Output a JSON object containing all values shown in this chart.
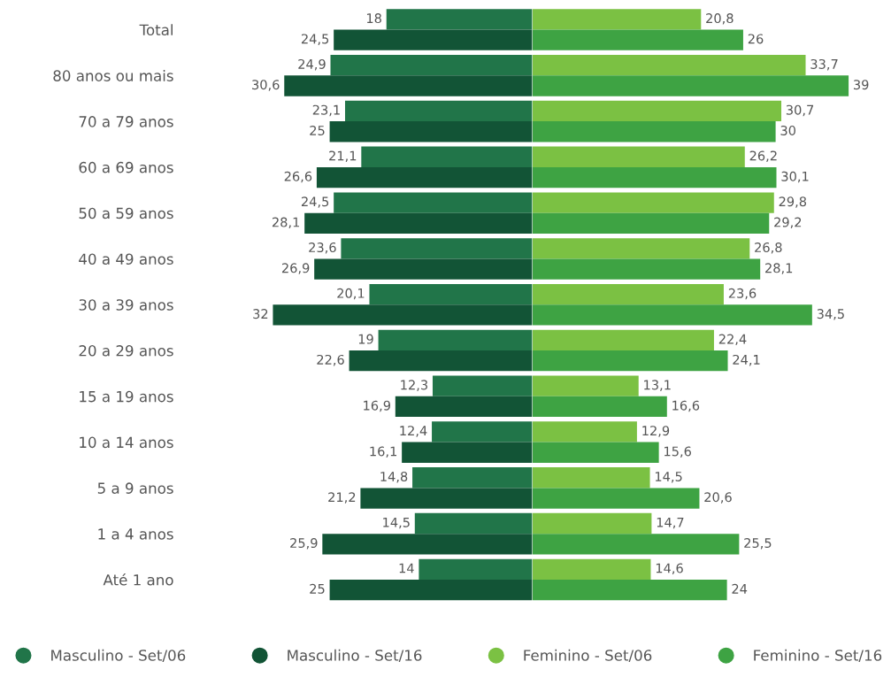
{
  "chart_data": [
    {
      "type": "bar",
      "orientation": "horizontal",
      "categories": [
        "Total",
        "80 anos ou mais",
        "70 a 79 anos",
        "60 a 69 anos",
        "50 a 59 anos",
        "40 a 49 anos",
        "30 a 39 anos",
        "20 a 29 anos",
        "15 a 19 anos",
        "10 a 14 anos",
        "5 a 9 anos",
        "1 a 4 anos",
        "Até 1 ano"
      ],
      "series": [
        {
          "name": "Masculino - Set/06",
          "color": "#217549",
          "values": [
            18,
            24.9,
            23.1,
            21.1,
            24.5,
            23.6,
            20.1,
            19,
            12.3,
            12.4,
            14.8,
            14.5,
            14
          ],
          "value_labels": [
            "18",
            "24,9",
            "23,1",
            "21,1",
            "24,5",
            "23,6",
            "20,1",
            "19",
            "12,3",
            "12,4",
            "14,8",
            "14,5",
            "14"
          ]
        },
        {
          "name": "Masculino - Set/16",
          "color": "#125436",
          "values": [
            24.5,
            30.6,
            25,
            26.6,
            28.1,
            26.9,
            32,
            22.6,
            16.9,
            16.1,
            21.2,
            25.9,
            25
          ],
          "value_labels": [
            "24,5",
            "30,6",
            "25",
            "26,6",
            "28,1",
            "26,9",
            "32",
            "22,6",
            "16,9",
            "16,1",
            "21,2",
            "25,9",
            "25"
          ]
        }
      ],
      "tick_labels": "y",
      "legend": "bottom"
    },
    {
      "type": "bar",
      "orientation": "horizontal",
      "categories": [
        null,
        null,
        null,
        null,
        null,
        null,
        null,
        null,
        null,
        null,
        null,
        null,
        null
      ],
      "series": [
        {
          "name": "Feminino - Set/06",
          "color": "#7bc143",
          "values": [
            20.8,
            33.7,
            30.7,
            26.2,
            29.8,
            26.8,
            23.6,
            22.4,
            13.1,
            12.9,
            14.5,
            14.7,
            14.6
          ],
          "value_labels": [
            "20,8",
            "33,7",
            "30,7",
            "26,2",
            "29,8",
            "26,8",
            "23,6",
            "22,4",
            "13,1",
            "12,9",
            "14,5",
            "14,7",
            "14,6"
          ]
        },
        {
          "name": "Feminino - Set/16",
          "color": "#3ea343",
          "values": [
            26,
            39,
            30,
            30.1,
            29.2,
            28.1,
            34.5,
            24.1,
            16.6,
            15.6,
            20.6,
            25.5,
            24
          ],
          "value_labels": [
            "26",
            "39",
            "30",
            "30,1",
            "29,2",
            "28,1",
            "34,5",
            "24,1",
            "16,6",
            "15,6",
            "20,6",
            "25,5",
            "24"
          ]
        }
      ],
      "tick_labels": false,
      "legend": "bottom"
    }
  ]
}
